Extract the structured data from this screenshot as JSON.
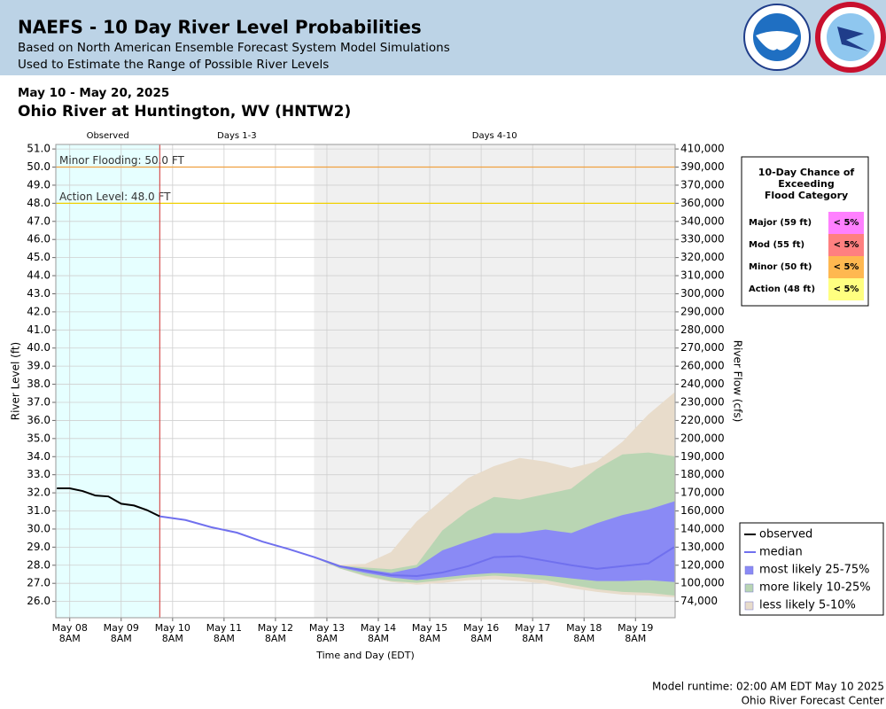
{
  "header": {
    "title": "NAEFS - 10 Day River Level Probabilities",
    "subtitle1": "Based on North American Ensemble Forecast System Model Simulations",
    "subtitle2": "Used to Estimate the Range of Possible River Levels"
  },
  "date_range": "May 10 - May 20, 2025",
  "location": "Ohio River at Huntington, WV (HNTW2)",
  "chart_data": {
    "type": "line",
    "ylabel": "River Level (ft)",
    "y2label": "River Flow (cfs)",
    "xlabel": "Time and Day (EDT)",
    "xlim": [
      "2025-05-08T01:30",
      "2025-05-20T02:30"
    ],
    "ylim": [
      25.1,
      51.25
    ],
    "yticks": [
      {
        "value": 51,
        "label": "51.0"
      },
      {
        "value": 50,
        "label": "50.0"
      },
      {
        "value": 49,
        "label": "49.0"
      },
      {
        "value": 48,
        "label": "48.0"
      },
      {
        "value": 47,
        "label": "47.0"
      },
      {
        "value": 46,
        "label": "46.0"
      },
      {
        "value": 45,
        "label": "45.0"
      },
      {
        "value": 44,
        "label": "44.0"
      },
      {
        "value": 43,
        "label": "43.0"
      },
      {
        "value": 42,
        "label": "42.0"
      },
      {
        "value": 41,
        "label": "41.0"
      },
      {
        "value": 40,
        "label": "40.0"
      },
      {
        "value": 39,
        "label": "39.0"
      },
      {
        "value": 38,
        "label": "38.0"
      },
      {
        "value": 37,
        "label": "37.0"
      },
      {
        "value": 36,
        "label": "36.0"
      },
      {
        "value": 35,
        "label": "35.0"
      },
      {
        "value": 34,
        "label": "34.0"
      },
      {
        "value": 33,
        "label": "33.0"
      },
      {
        "value": 32,
        "label": "32.0"
      },
      {
        "value": 31,
        "label": "31.0"
      },
      {
        "value": 30,
        "label": "30.0"
      },
      {
        "value": 29,
        "label": "29.0"
      },
      {
        "value": 28,
        "label": "28.0"
      },
      {
        "value": 27,
        "label": "27.0"
      },
      {
        "value": 26,
        "label": "26.0"
      }
    ],
    "y2ticks": [
      {
        "value": 410000,
        "label": "410,000",
        "stage": 51
      },
      {
        "value": 390000,
        "label": "390,000",
        "stage": 50
      },
      {
        "value": 370000,
        "label": "370,000",
        "stage": 49
      },
      {
        "value": 360000,
        "label": "360,000",
        "stage": 48
      },
      {
        "value": 340000,
        "label": "340,000",
        "stage": 47
      },
      {
        "value": 330000,
        "label": "330,000",
        "stage": 46
      },
      {
        "value": 320000,
        "label": "320,000",
        "stage": 45
      },
      {
        "value": 310000,
        "label": "310,000",
        "stage": 44
      },
      {
        "value": 300000,
        "label": "300,000",
        "stage": 43
      },
      {
        "value": 290000,
        "label": "290,000",
        "stage": 42
      },
      {
        "value": 280000,
        "label": "280,000",
        "stage": 41
      },
      {
        "value": 270000,
        "label": "270,000",
        "stage": 40
      },
      {
        "value": 260000,
        "label": "260,000",
        "stage": 39
      },
      {
        "value": 240000,
        "label": "240,000",
        "stage": 38
      },
      {
        "value": 230000,
        "label": "230,000",
        "stage": 37
      },
      {
        "value": 220000,
        "label": "220,000",
        "stage": 36
      },
      {
        "value": 200000,
        "label": "200,000",
        "stage": 35
      },
      {
        "value": 190000,
        "label": "190,000",
        "stage": 34
      },
      {
        "value": 180000,
        "label": "180,000",
        "stage": 33
      },
      {
        "value": 170000,
        "label": "170,000",
        "stage": 32
      },
      {
        "value": 160000,
        "label": "160,000",
        "stage": 31
      },
      {
        "value": 140000,
        "label": "140,000",
        "stage": 30
      },
      {
        "value": 130000,
        "label": "130,000",
        "stage": 29
      },
      {
        "value": 120000,
        "label": "120,000",
        "stage": 28
      },
      {
        "value": 100000,
        "label": "100,000",
        "stage": 27
      },
      {
        "value": 74000,
        "label": "74,000",
        "stage": 26
      }
    ],
    "xticks": [
      {
        "value": "2025-05-08T08:00",
        "label": [
          "May 08",
          "8AM"
        ]
      },
      {
        "value": "2025-05-09T08:00",
        "label": [
          "May 09",
          "8AM"
        ]
      },
      {
        "value": "2025-05-10T08:00",
        "label": [
          "May 10",
          "8AM"
        ]
      },
      {
        "value": "2025-05-11T08:00",
        "label": [
          "May 11",
          "8AM"
        ]
      },
      {
        "value": "2025-05-12T08:00",
        "label": [
          "May 12",
          "8AM"
        ]
      },
      {
        "value": "2025-05-13T08:00",
        "label": [
          "May 13",
          "8AM"
        ]
      },
      {
        "value": "2025-05-14T08:00",
        "label": [
          "May 14",
          "8AM"
        ]
      },
      {
        "value": "2025-05-15T08:00",
        "label": [
          "May 15",
          "8AM"
        ]
      },
      {
        "value": "2025-05-16T08:00",
        "label": [
          "May 16",
          "8AM"
        ]
      },
      {
        "value": "2025-05-17T08:00",
        "label": [
          "May 17",
          "8AM"
        ]
      },
      {
        "value": "2025-05-18T08:00",
        "label": [
          "May 18",
          "8AM"
        ]
      },
      {
        "value": "2025-05-19T08:00",
        "label": [
          "May 19",
          "8AM"
        ]
      }
    ],
    "grid": true,
    "regions": [
      {
        "label": "Observed",
        "start": "2025-05-08T01:30",
        "end": "2025-05-10T02:00",
        "color": "#e6ffff"
      },
      {
        "label": "Days 1-3",
        "start": "2025-05-10T02:00",
        "end": "2025-05-13T02:00",
        "color": "#ffffff"
      },
      {
        "label": "Days 4-10",
        "start": "2025-05-13T02:00",
        "end": "2025-05-20T02:30",
        "color": "#f0f0f0"
      }
    ],
    "thresholds": [
      {
        "label": "Minor Flooding: 50.0 FT",
        "value": 50,
        "color": "#f0a040"
      },
      {
        "label": "Action Level: 48.0 FT",
        "value": 48,
        "color": "#f0d000"
      }
    ],
    "bands": [
      {
        "name": "less likely 5-10%",
        "color": "#e8dccb",
        "x": [
          "2025-05-13T02:00",
          "2025-05-13T14:00",
          "2025-05-14T02:00",
          "2025-05-14T14:00",
          "2025-05-15T02:00",
          "2025-05-15T14:00",
          "2025-05-16T02:00",
          "2025-05-16T14:00",
          "2025-05-17T02:00",
          "2025-05-17T14:00",
          "2025-05-18T02:00",
          "2025-05-18T14:00",
          "2025-05-19T02:00",
          "2025-05-19T14:00",
          "2025-05-20T02:00"
        ],
        "low": [
          28.45,
          27.85,
          27.4,
          27.1,
          26.95,
          27.05,
          27.2,
          27.25,
          27.15,
          27.0,
          26.75,
          26.55,
          26.4,
          26.35,
          26.25
        ],
        "high": [
          28.45,
          28.0,
          28.05,
          28.7,
          30.4,
          31.6,
          32.8,
          33.45,
          33.9,
          33.7,
          33.35,
          33.7,
          34.8,
          36.3,
          37.5
        ]
      },
      {
        "name": "more likely 10-25%",
        "color": "#b9d5b3",
        "x": [
          "2025-05-13T02:00",
          "2025-05-13T14:00",
          "2025-05-14T02:00",
          "2025-05-14T14:00",
          "2025-05-15T02:00",
          "2025-05-15T14:00",
          "2025-05-16T02:00",
          "2025-05-16T14:00",
          "2025-05-17T02:00",
          "2025-05-17T14:00",
          "2025-05-18T02:00",
          "2025-05-18T14:00",
          "2025-05-19T02:00",
          "2025-05-19T14:00",
          "2025-05-20T02:00"
        ],
        "low": [
          28.45,
          27.85,
          27.45,
          27.15,
          27.05,
          27.2,
          27.35,
          27.45,
          27.35,
          27.2,
          26.95,
          26.7,
          26.55,
          26.5,
          26.35
        ],
        "high": [
          28.45,
          27.95,
          27.85,
          27.75,
          28.0,
          29.9,
          31.0,
          31.75,
          31.6,
          31.9,
          32.2,
          33.3,
          34.1,
          34.2,
          34.0
        ]
      },
      {
        "name": "most likely 25-75%",
        "color": "#8a8af5",
        "x": [
          "2025-05-13T02:00",
          "2025-05-13T14:00",
          "2025-05-14T02:00",
          "2025-05-14T14:00",
          "2025-05-15T02:00",
          "2025-05-15T14:00",
          "2025-05-16T02:00",
          "2025-05-16T14:00",
          "2025-05-17T02:00",
          "2025-05-17T14:00",
          "2025-05-18T02:00",
          "2025-05-18T14:00",
          "2025-05-19T02:00",
          "2025-05-19T14:00",
          "2025-05-20T02:00"
        ],
        "low": [
          28.45,
          27.9,
          27.6,
          27.35,
          27.2,
          27.35,
          27.5,
          27.6,
          27.55,
          27.45,
          27.3,
          27.15,
          27.15,
          27.2,
          27.1
        ],
        "high": [
          28.45,
          27.95,
          27.75,
          27.55,
          27.85,
          28.8,
          29.3,
          29.75,
          29.75,
          29.95,
          29.75,
          30.3,
          30.75,
          31.05,
          31.5
        ]
      }
    ],
    "series": [
      {
        "name": "observed",
        "color": "#000000",
        "x": [
          "2025-05-08T02:00",
          "2025-05-08T08:00",
          "2025-05-08T14:00",
          "2025-05-08T20:00",
          "2025-05-09T02:00",
          "2025-05-09T08:00",
          "2025-05-09T14:00",
          "2025-05-09T20:00",
          "2025-05-10T02:00"
        ],
        "values": [
          32.25,
          32.25,
          32.1,
          31.85,
          31.8,
          31.4,
          31.3,
          31.05,
          30.7
        ]
      },
      {
        "name": "median",
        "color": "#7070ee",
        "x": [
          "2025-05-10T02:00",
          "2025-05-10T14:00",
          "2025-05-11T02:00",
          "2025-05-11T14:00",
          "2025-05-12T02:00",
          "2025-05-12T14:00",
          "2025-05-13T02:00",
          "2025-05-13T14:00",
          "2025-05-14T02:00",
          "2025-05-14T14:00",
          "2025-05-15T02:00",
          "2025-05-15T14:00",
          "2025-05-16T02:00",
          "2025-05-16T14:00",
          "2025-05-17T02:00",
          "2025-05-17T14:00",
          "2025-05-18T02:00",
          "2025-05-18T14:00",
          "2025-05-19T02:00",
          "2025-05-19T14:00",
          "2025-05-20T02:00"
        ],
        "values": [
          30.7,
          30.5,
          30.1,
          29.8,
          29.3,
          28.9,
          28.45,
          27.95,
          27.7,
          27.45,
          27.4,
          27.6,
          27.95,
          28.45,
          28.5,
          28.25,
          28.0,
          27.8,
          27.95,
          28.1,
          29.0
        ]
      }
    ]
  },
  "exceed_table": {
    "title": [
      "10-Day Chance of",
      "Exceeding",
      "Flood Category"
    ],
    "rows": [
      {
        "category": "Major (59 ft)",
        "chance": "< 5%",
        "color": "#ff80ff"
      },
      {
        "category": "Mod (55 ft)",
        "chance": "< 5%",
        "color": "#ff8080"
      },
      {
        "category": "Minor (50 ft)",
        "chance": "< 5%",
        "color": "#ffb850"
      },
      {
        "category": "Action (48 ft)",
        "chance": "< 5%",
        "color": "#ffff80"
      }
    ]
  },
  "footer": {
    "runtime": "Model runtime: 02:00 AM EDT May 10 2025",
    "center": "Ohio River Forecast Center"
  }
}
